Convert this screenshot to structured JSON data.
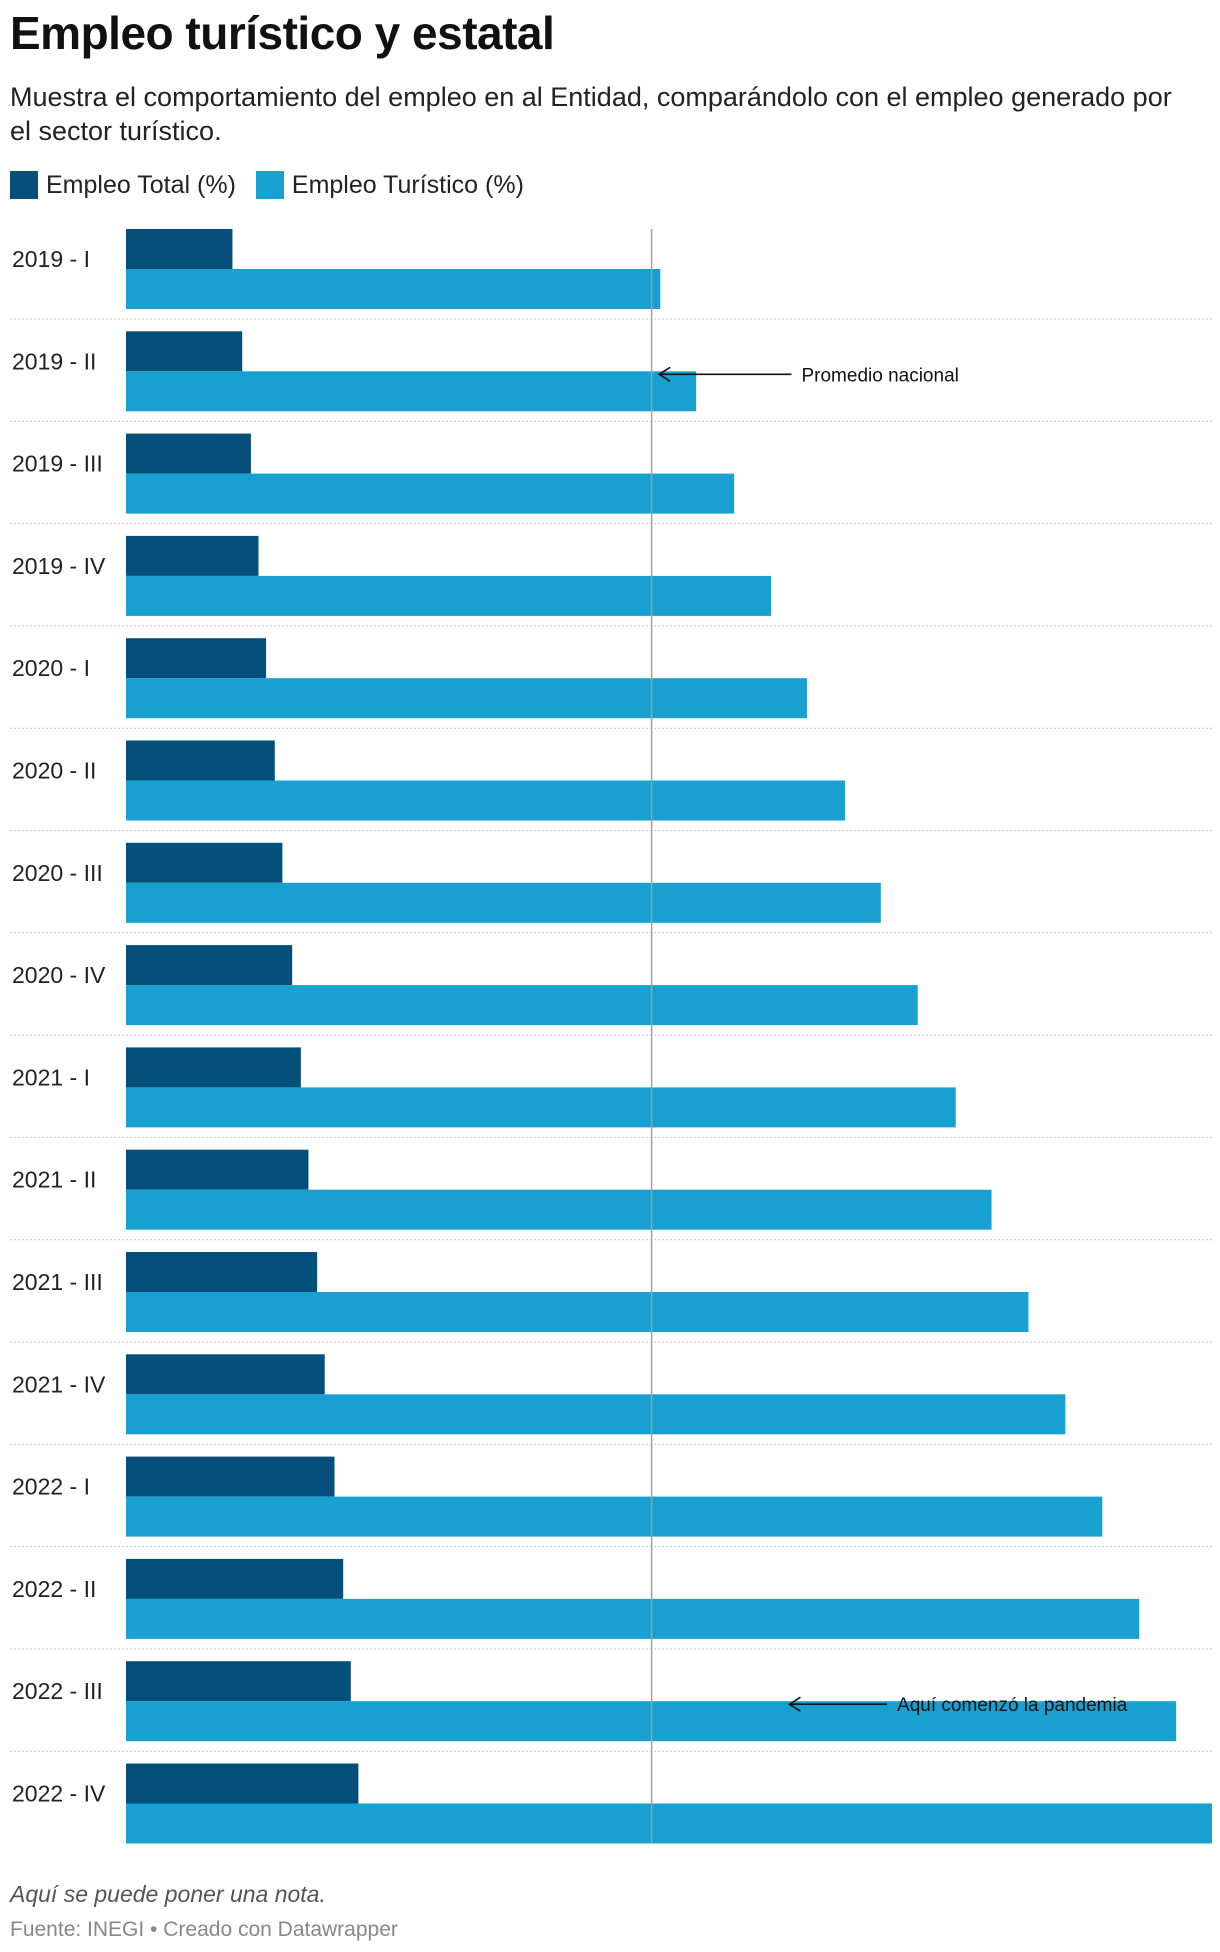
{
  "header": {
    "title": "Empleo turístico y estatal",
    "subtitle": "Muestra el comportamiento del empleo en al Entidad, comparándolo con el empleo generado por el sector turístico."
  },
  "legend": [
    {
      "label": "Empleo Total (%)",
      "color": "#04507a"
    },
    {
      "label": "Empleo Turístico (%)",
      "color": "#17a0d0"
    }
  ],
  "chart_data": {
    "type": "bar",
    "orientation": "horizontal",
    "categories": [
      "2019 - I",
      "2019 - II",
      "2019 - III",
      "2019 - IV",
      "2020 - I",
      "2020 - II",
      "2020 - III",
      "2020 - IV",
      "2021 - I",
      "2021 - II",
      "2021 - III",
      "2021 - IV",
      "2022 - I",
      "2022 - II",
      "2022 - III",
      "2022 - IV"
    ],
    "series": [
      {
        "name": "Empleo Total (%)",
        "color": "#04507a",
        "values": [
          9.8,
          10.7,
          11.5,
          12.2,
          12.9,
          13.7,
          14.4,
          15.3,
          16.1,
          16.8,
          17.6,
          18.3,
          19.2,
          20.0,
          20.7,
          21.4
        ]
      },
      {
        "name": "Empleo Turístico (%)",
        "color": "#17a0d0",
        "values": [
          49.2,
          52.5,
          56.0,
          59.4,
          62.7,
          66.2,
          69.5,
          72.9,
          76.4,
          79.7,
          83.1,
          86.5,
          89.9,
          93.3,
          96.7,
          100.0
        ]
      }
    ],
    "xlim": [
      0,
      100
    ],
    "reference_line": {
      "value": 48.4
    },
    "annotations": [
      {
        "text": "Promedio nacional",
        "row": 1,
        "value": 62.2,
        "arrow_to": 49.0
      },
      {
        "text": "Aquí comenzó la pandemia",
        "row": 14,
        "value": 71.0,
        "arrow_to": 61.0
      }
    ],
    "grid": false
  },
  "footer": {
    "note": "Aquí se puede poner una nota.",
    "source": "Fuente: INEGI • Creado con Datawrapper"
  }
}
